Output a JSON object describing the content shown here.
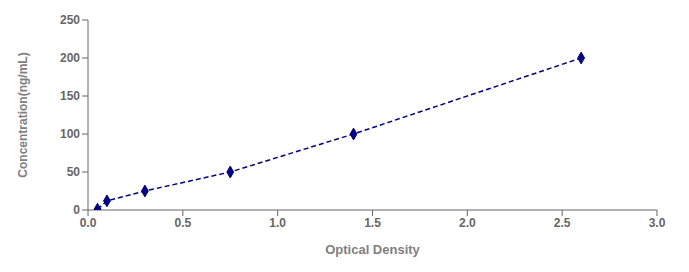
{
  "chart_data": {
    "type": "line",
    "x": [
      0.05,
      0.1,
      0.3,
      0.75,
      1.4,
      2.6
    ],
    "values": [
      1,
      12,
      25,
      50,
      100,
      200
    ],
    "color": "#00008B",
    "marker": "diamond",
    "line_style": "dashed",
    "xlabel": "Optical Density",
    "ylabel": "Concentration(ng/mL)",
    "xlim": [
      0,
      3
    ],
    "ylim": [
      0,
      250
    ],
    "xticks": [
      {
        "value": 0,
        "label": "0.0"
      },
      0.5,
      {
        "value": 1,
        "label": "1.0"
      },
      1.5,
      {
        "value": 2,
        "label": "2.0"
      },
      2.5,
      {
        "value": 3,
        "label": "3.0"
      }
    ],
    "yticks": [
      0,
      50,
      100,
      150,
      200,
      250
    ],
    "grid": false
  }
}
